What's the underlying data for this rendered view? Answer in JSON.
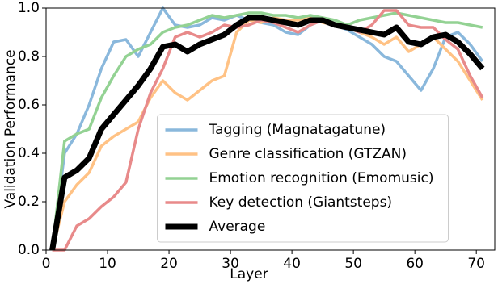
{
  "chart_data": {
    "type": "line",
    "x_label": "Layer",
    "y_label": "Validation Performance",
    "x": [
      1,
      3,
      5,
      7,
      9,
      11,
      13,
      15,
      17,
      19,
      21,
      23,
      25,
      27,
      29,
      31,
      33,
      35,
      37,
      39,
      41,
      43,
      45,
      47,
      49,
      51,
      53,
      55,
      57,
      59,
      61,
      63,
      65,
      67,
      69,
      71
    ],
    "series": [
      {
        "name": "Tagging (Magnatagatune)",
        "color": "#8ab8dc",
        "width": 3.5,
        "values": [
          0,
          0.4,
          0.48,
          0.6,
          0.75,
          0.86,
          0.87,
          0.8,
          0.9,
          1.0,
          0.93,
          0.92,
          0.93,
          0.96,
          0.95,
          0.97,
          0.95,
          0.94,
          0.93,
          0.9,
          0.89,
          0.93,
          0.95,
          0.93,
          0.91,
          0.88,
          0.85,
          0.8,
          0.78,
          0.72,
          0.66,
          0.75,
          0.88,
          0.9,
          0.85,
          0.78
        ]
      },
      {
        "name": "Genre classification (GTZAN)",
        "color": "#ffc285",
        "width": 3.5,
        "values": [
          0,
          0.2,
          0.27,
          0.32,
          0.43,
          0.47,
          0.5,
          0.53,
          0.63,
          0.7,
          0.65,
          0.62,
          0.66,
          0.7,
          0.72,
          0.9,
          0.95,
          0.94,
          0.96,
          0.95,
          0.95,
          0.96,
          0.94,
          0.93,
          0.92,
          0.9,
          0.88,
          0.85,
          0.88,
          0.82,
          0.85,
          0.88,
          0.83,
          0.78,
          0.7,
          0.62
        ]
      },
      {
        "name": "Emotion recognition (Emomusic)",
        "color": "#93d293",
        "width": 3.5,
        "values": [
          0,
          0.45,
          0.48,
          0.5,
          0.63,
          0.72,
          0.8,
          0.83,
          0.85,
          0.9,
          0.92,
          0.93,
          0.95,
          0.97,
          0.96,
          0.97,
          0.98,
          0.98,
          0.97,
          0.97,
          0.96,
          0.97,
          0.96,
          0.95,
          0.93,
          0.95,
          0.96,
          0.97,
          0.98,
          0.97,
          0.96,
          0.95,
          0.94,
          0.94,
          0.93,
          0.92
        ]
      },
      {
        "name": "Key detection (Giantsteps)",
        "color": "#e88a8a",
        "width": 3.5,
        "values": [
          0,
          0,
          0.1,
          0.13,
          0.18,
          0.22,
          0.28,
          0.5,
          0.65,
          0.75,
          0.88,
          0.9,
          0.88,
          0.9,
          0.93,
          0.92,
          0.93,
          0.95,
          0.94,
          0.92,
          0.9,
          0.93,
          0.95,
          0.93,
          0.92,
          0.9,
          0.93,
          0.99,
          0.99,
          0.93,
          0.92,
          0.92,
          0.87,
          0.83,
          0.72,
          0.63
        ]
      },
      {
        "name": "Average",
        "color": "#000000",
        "width": 7,
        "values": [
          0,
          0.3,
          0.33,
          0.38,
          0.5,
          0.56,
          0.62,
          0.68,
          0.75,
          0.84,
          0.85,
          0.82,
          0.85,
          0.87,
          0.89,
          0.93,
          0.96,
          0.96,
          0.95,
          0.94,
          0.93,
          0.95,
          0.95,
          0.93,
          0.92,
          0.91,
          0.9,
          0.89,
          0.92,
          0.86,
          0.85,
          0.88,
          0.89,
          0.86,
          0.81,
          0.75
        ]
      }
    ],
    "xlim": [
      0,
      73
    ],
    "ylim": [
      0,
      1
    ],
    "xticks": [
      0,
      10,
      20,
      30,
      40,
      50,
      60,
      70
    ],
    "yticks": [
      {
        "value": 0,
        "label": "0.0"
      },
      0.2,
      0.4,
      0.6,
      0.8,
      {
        "value": 1,
        "label": "1.0"
      }
    ],
    "legend": "lower center"
  }
}
